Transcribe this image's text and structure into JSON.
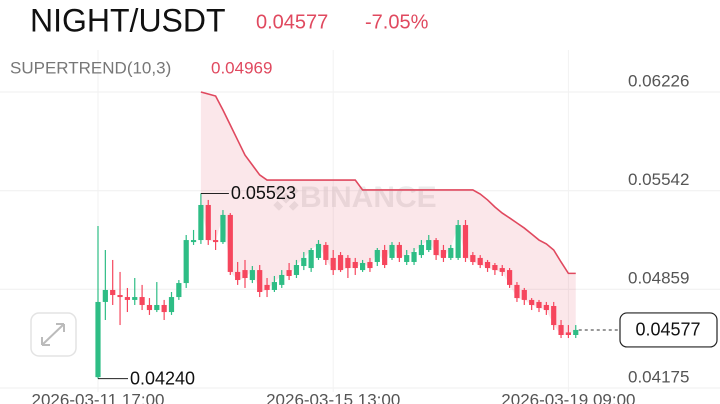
{
  "chart_data": {
    "type": "candlestick",
    "title": "NIGHT/USDT",
    "price": "0.04577",
    "change": "-7.05%",
    "indicator_value": "0.04969",
    "watermark": "BINANCE",
    "max_label": "0.05523",
    "min_label": "0.04240",
    "last_label": "0.04577",
    "up_color": "#2ebd85",
    "down_color": "#f6465d",
    "grid": true,
    "ylim": [
      0.04147,
      0.06517
    ],
    "yticks": [
      0.06226,
      0.05542,
      0.04859,
      0.04175
    ],
    "categories": [
      "2026-03-11 17:00",
      null,
      null,
      null,
      null,
      null,
      null,
      null,
      null,
      null,
      null,
      null,
      null,
      null,
      null,
      null,
      null,
      null,
      null,
      null,
      null,
      null,
      null,
      null,
      null,
      null,
      null,
      null,
      null,
      null,
      null,
      null,
      "2026-03-15 13:00",
      null,
      null,
      null,
      null,
      null,
      null,
      null,
      null,
      null,
      null,
      null,
      null,
      null,
      null,
      null,
      null,
      null,
      null,
      null,
      null,
      null,
      null,
      null,
      null,
      null,
      null,
      null,
      null,
      null,
      null,
      null,
      "2026-03-19 09:00",
      null
    ],
    "open": [
      0.0425,
      0.04771,
      0.04854,
      0.04819,
      0.04805,
      0.04785,
      0.04805,
      0.0475,
      0.04715,
      0.0475,
      0.04701,
      0.04805,
      0.04902,
      0.05186,
      0.052,
      0.05443,
      0.052,
      0.05186,
      0.05374,
      0.04979,
      0.04992,
      0.04923,
      0.04992,
      0.04889,
      0.04854,
      0.04889,
      0.04992,
      0.04958,
      0.0502,
      0.05006,
      0.05076,
      0.05166,
      0.05076,
      0.05096,
      0.05076,
      0.05048,
      0.04992,
      0.05048,
      0.05048,
      0.05131,
      0.05076,
      0.05166,
      0.05048,
      0.05048,
      0.05096,
      0.05131,
      0.052,
      0.05131,
      0.05076,
      0.05076,
      0.05304,
      0.05096,
      0.05076,
      0.05048,
      0.05027,
      0.05006,
      0.04992,
      0.04889,
      0.04854,
      0.04785,
      0.04771,
      0.0475,
      0.04743,
      0.04611,
      0.0456,
      0.04542
    ],
    "high": [
      0.05297,
      0.05131,
      0.05062,
      0.04979,
      0.04868,
      0.04937,
      0.04889,
      0.04798,
      0.04909,
      0.04785,
      0.0484,
      0.04923,
      0.05235,
      0.0527,
      0.05523,
      0.05478,
      0.0527,
      0.05408,
      0.05387,
      0.05048,
      0.05062,
      0.0502,
      0.05027,
      0.04937,
      0.04951,
      0.04992,
      0.05041,
      0.05062,
      0.05117,
      0.05145,
      0.052,
      0.05186,
      0.05131,
      0.05117,
      0.05096,
      0.05076,
      0.05062,
      0.05076,
      0.05145,
      0.05166,
      0.05186,
      0.05186,
      0.05131,
      0.05145,
      0.052,
      0.05235,
      0.05214,
      0.05166,
      0.05166,
      0.05339,
      0.05339,
      0.05117,
      0.05096,
      0.05062,
      0.05041,
      0.05027,
      0.05006,
      0.04909,
      0.04868,
      0.04798,
      0.04785,
      0.04771,
      0.04771,
      0.04646,
      0.04611,
      0.04611
    ],
    "low": [
      0.0424,
      0.04646,
      0.0475,
      0.04611,
      0.04701,
      0.0475,
      0.04715,
      0.04681,
      0.04701,
      0.04646,
      0.04681,
      0.04785,
      0.04868,
      0.05166,
      0.05173,
      0.05166,
      0.05131,
      0.05173,
      0.04958,
      0.04889,
      0.04868,
      0.04902,
      0.04805,
      0.04805,
      0.0484,
      0.04868,
      0.04923,
      0.04937,
      0.04992,
      0.04979,
      0.05062,
      0.05027,
      0.04958,
      0.04979,
      0.04937,
      0.04958,
      0.04979,
      0.04979,
      0.0502,
      0.05006,
      0.05062,
      0.05048,
      0.05027,
      0.05027,
      0.05076,
      0.05117,
      0.05062,
      0.05048,
      0.05062,
      0.05062,
      0.05048,
      0.05027,
      0.05006,
      0.04979,
      0.04958,
      0.04951,
      0.04868,
      0.04771,
      0.0475,
      0.04715,
      0.04701,
      0.04681,
      0.04577,
      0.04521,
      0.04521,
      0.04521
    ],
    "close": [
      0.04771,
      0.04854,
      0.04819,
      0.04805,
      0.04785,
      0.04805,
      0.0475,
      0.04715,
      0.0475,
      0.04701,
      0.04805,
      0.04902,
      0.052,
      0.052,
      0.05443,
      0.052,
      0.05186,
      0.05374,
      0.04979,
      0.04923,
      0.04937,
      0.04992,
      0.0484,
      0.04854,
      0.04909,
      0.04958,
      0.04951,
      0.05027,
      0.05076,
      0.05131,
      0.05173,
      0.05062,
      0.04992,
      0.04992,
      0.05006,
      0.05006,
      0.05041,
      0.05006,
      0.05131,
      0.05027,
      0.05166,
      0.05076,
      0.05096,
      0.05117,
      0.05166,
      0.052,
      0.05096,
      0.05076,
      0.05145,
      0.05304,
      0.05076,
      0.05048,
      0.05027,
      0.05006,
      0.04992,
      0.04979,
      0.04889,
      0.04798,
      0.04785,
      0.0475,
      0.04729,
      0.04715,
      0.04611,
      0.04542,
      0.04542,
      0.04577
    ],
    "series": [
      {
        "name": "SUPERTREND(10,3)",
        "color": "#e0495f",
        "values": [
          null,
          null,
          null,
          null,
          null,
          null,
          null,
          null,
          null,
          null,
          null,
          null,
          null,
          null,
          0.06226,
          0.06212,
          0.06198,
          0.06101,
          0.05997,
          0.05893,
          0.05789,
          0.0572,
          0.05651,
          0.05616,
          0.05616,
          0.05616,
          0.05616,
          0.05616,
          0.05616,
          0.05616,
          0.05616,
          0.05616,
          0.05616,
          0.05616,
          0.05616,
          0.05616,
          0.05547,
          0.05547,
          0.05547,
          0.05547,
          0.05547,
          0.05547,
          0.05547,
          0.05547,
          0.05547,
          0.05547,
          0.05547,
          0.05547,
          0.05547,
          0.05547,
          0.05547,
          0.05547,
          0.05519,
          0.05478,
          0.05429,
          0.05387,
          0.05353,
          0.05318,
          0.05283,
          0.05242,
          0.052,
          0.05173,
          0.05131,
          0.05048,
          0.04969,
          0.04969
        ]
      }
    ]
  }
}
